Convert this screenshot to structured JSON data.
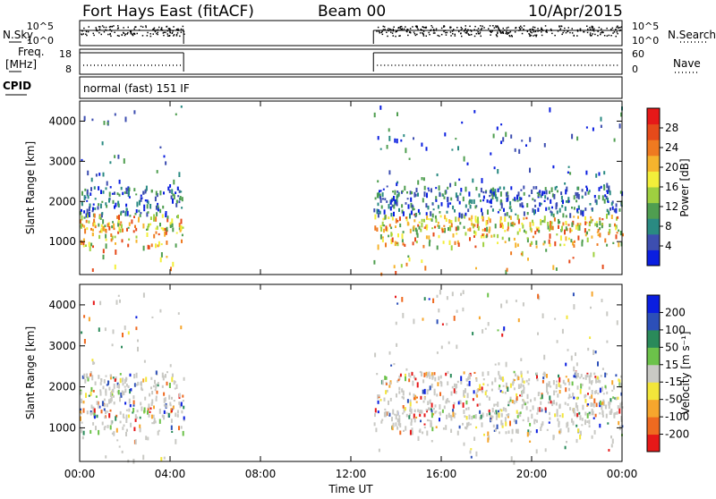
{
  "header": {
    "station": "Fort Hays East (fitACF)",
    "beam": "Beam 00",
    "date": "10/Apr/2015"
  },
  "strips": {
    "nsky_label": "N.Sky",
    "nsky_ticks": [
      "10^5",
      "10^0"
    ],
    "nsearch_label": "N.Search",
    "nsearch_ticks": [
      "10^5",
      "10^0"
    ],
    "freq_label_1": "Freq.",
    "freq_label_2": "[MHz]",
    "freq_ticks": [
      "18",
      "8"
    ],
    "nave_label": "Nave",
    "nave_ticks": [
      "60",
      "0"
    ],
    "cpid_label": "CPID",
    "cpid_text": "normal (fast) 151 IF"
  },
  "chart_data": [
    {
      "type": "heatmap",
      "title": "",
      "xlabel": "Time UT",
      "ylabel": "Slant Range [km]",
      "xlim": [
        0,
        24
      ],
      "ylim": [
        180,
        4500
      ],
      "x_ticks": [
        "00:00",
        "04:00",
        "08:00",
        "12:00",
        "16:00",
        "20:00",
        "00:00"
      ],
      "y_ticks": [
        1000,
        2000,
        3000,
        4000
      ],
      "colorbar": {
        "label": "Power [dB]",
        "ticks": [
          "4",
          "8",
          "12",
          "16",
          "20",
          "24",
          "28"
        ],
        "colors": [
          "#0a1ee0",
          "#3d4eb0",
          "#2a8a82",
          "#4f9e50",
          "#9fd040",
          "#f3ef3a",
          "#f6b42d",
          "#ef7a20",
          "#e64a1a",
          "#e61818"
        ]
      },
      "data_coverage_hours": [
        [
          0.0,
          4.6
        ],
        [
          13.0,
          24.0
        ]
      ]
    },
    {
      "type": "heatmap",
      "title": "",
      "xlabel": "Time UT",
      "ylabel": "Slant Range [km]",
      "xlim": [
        0,
        24
      ],
      "ylim": [
        180,
        4500
      ],
      "x_ticks": [
        "00:00",
        "04:00",
        "08:00",
        "12:00",
        "16:00",
        "20:00",
        "00:00"
      ],
      "y_ticks": [
        1000,
        2000,
        3000,
        4000
      ],
      "colorbar": {
        "label": "Velocity [m s⁻¹]",
        "ticks": [
          "200",
          "100",
          "50",
          "15",
          "-15",
          "-50",
          "-100",
          "-200"
        ],
        "colors": [
          "#0a1ee0",
          "#2c4fb8",
          "#2a8a5a",
          "#6cc24a",
          "#c9c9c4",
          "#f3e63a",
          "#f6a62d",
          "#ef6a20",
          "#e61818"
        ]
      },
      "data_coverage_hours": [
        [
          0.0,
          4.6
        ],
        [
          13.0,
          24.0
        ]
      ]
    }
  ]
}
